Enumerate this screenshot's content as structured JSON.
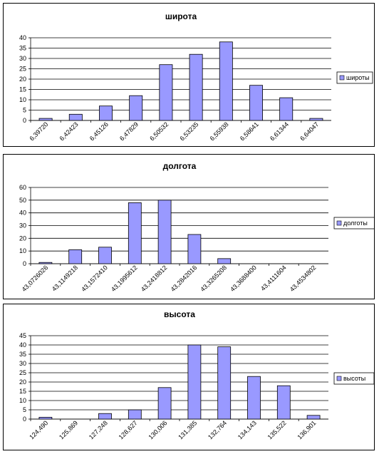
{
  "chart_data": [
    {
      "type": "bar",
      "title": "широта",
      "series": [
        {
          "name": "широты",
          "values": [
            1,
            3,
            7,
            12,
            27,
            32,
            38,
            17,
            11,
            1
          ]
        }
      ],
      "categories": [
        "6,39720",
        "6,42423",
        "6,45126",
        "6,47829",
        "6,50532",
        "6,53235",
        "6,55938",
        "6,58641",
        "6,61344",
        "6,64047"
      ],
      "ylim": [
        0,
        40
      ],
      "yticks": [
        0,
        5,
        10,
        15,
        20,
        25,
        30,
        35,
        40
      ],
      "grid": true,
      "legend": "right",
      "bar_color": "#9999FF"
    },
    {
      "type": "bar",
      "title": "долгота",
      "series": [
        {
          "name": "долготы",
          "values": [
            1,
            11,
            13,
            48,
            50,
            23,
            4,
            0,
            0,
            0
          ]
        }
      ],
      "categories": [
        "43,0726026",
        "43,1149218",
        "43,1572410",
        "43,1995612",
        "43,2418812",
        "43,2842016",
        "43,3265208",
        "43,3688400",
        "43,4111604",
        "43,4534802"
      ],
      "ylim": [
        0,
        60
      ],
      "yticks": [
        0,
        10,
        20,
        30,
        40,
        50,
        60
      ],
      "grid": true,
      "legend": "right",
      "bar_color": "#9999FF"
    },
    {
      "type": "bar",
      "title": "высота",
      "series": [
        {
          "name": "высоты",
          "values": [
            1,
            0,
            3,
            5,
            17,
            40,
            39,
            23,
            18,
            2
          ]
        }
      ],
      "categories": [
        "124,490",
        "125,869",
        "127,248",
        "128,627",
        "130,006",
        "131,385",
        "132,764",
        "134,143",
        "135,522",
        "136,901"
      ],
      "ylim": [
        0,
        45
      ],
      "yticks": [
        0,
        5,
        10,
        15,
        20,
        25,
        30,
        35,
        40,
        45
      ],
      "grid": true,
      "legend": "right",
      "bar_color": "#9999FF"
    }
  ]
}
